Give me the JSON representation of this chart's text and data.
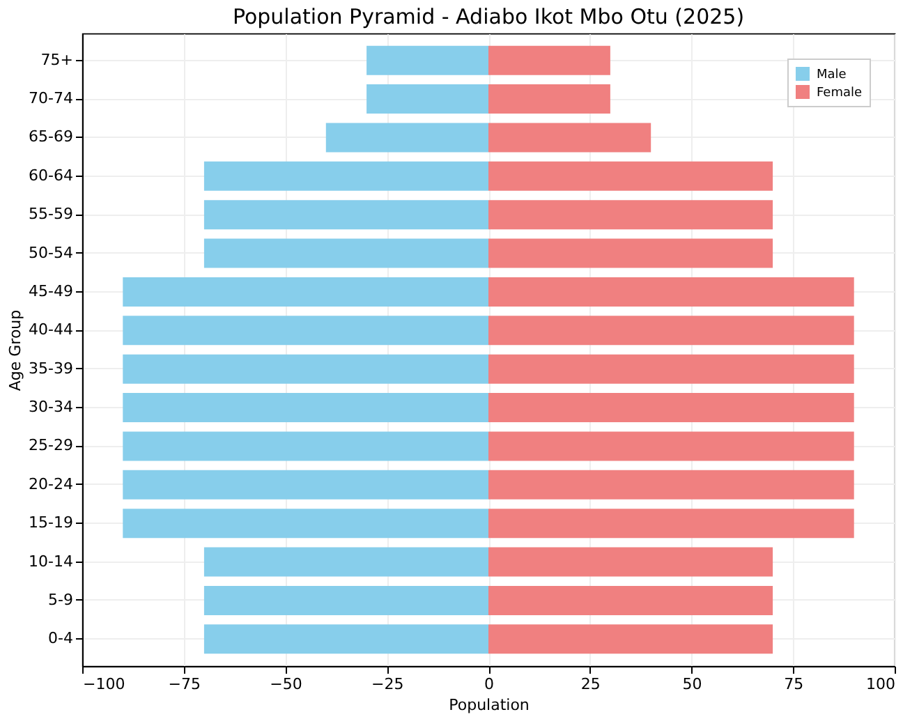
{
  "chart_data": {
    "type": "bar",
    "orientation": "horizontal",
    "title": "Population Pyramid - Adiabo Ikot Mbo Otu (2025)",
    "xlabel": "Population",
    "ylabel": "Age Group",
    "categories": [
      "75+",
      "70-74",
      "65-69",
      "60-64",
      "55-59",
      "50-54",
      "45-49",
      "40-44",
      "35-39",
      "30-34",
      "25-29",
      "20-24",
      "15-19",
      "10-14",
      "5-9",
      "0-4"
    ],
    "series": [
      {
        "name": "Male",
        "color": "#87ceeb",
        "values": [
          -30,
          -30,
          -40,
          -70,
          -70,
          -70,
          -90,
          -90,
          -90,
          -90,
          -90,
          -90,
          -90,
          -70,
          -70,
          -70
        ]
      },
      {
        "name": "Female",
        "color": "#f08080",
        "values": [
          30,
          30,
          40,
          70,
          70,
          70,
          90,
          90,
          90,
          90,
          90,
          90,
          90,
          70,
          70,
          70
        ]
      }
    ],
    "xlim": [
      -100,
      100
    ],
    "xticks": [
      {
        "value": -100,
        "label": "−100"
      },
      {
        "value": -75,
        "label": "−75"
      },
      {
        "value": -50,
        "label": "−50"
      },
      {
        "value": -25,
        "label": "−25"
      },
      0,
      25,
      50,
      75,
      100
    ],
    "grid": true,
    "legend": "top right",
    "stacked": true
  }
}
